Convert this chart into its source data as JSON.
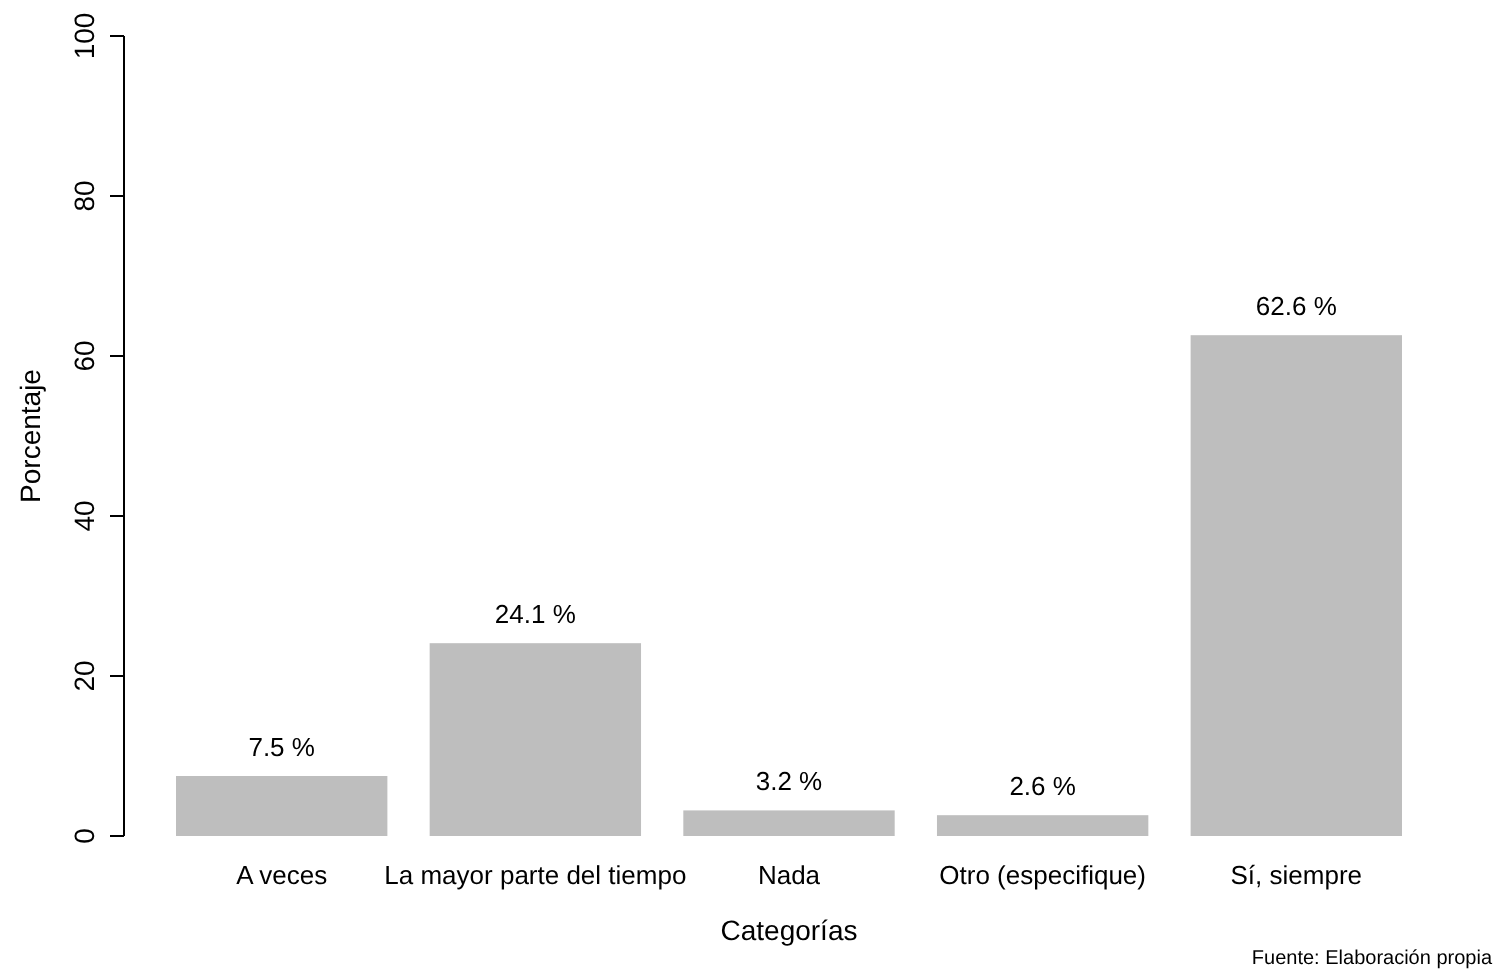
{
  "chart_data": {
    "type": "bar",
    "xlabel": "Categorías",
    "ylabel": "Porcentaje",
    "categories": [
      "A veces",
      "La mayor parte del tiempo",
      "Nada",
      "Otro (especifique)",
      "Sí, siempre"
    ],
    "values": [
      7.5,
      24.1,
      3.2,
      2.6,
      62.6
    ],
    "value_labels": [
      "7.5 %",
      "24.1 %",
      "3.2 %",
      "2.6 %",
      "62.6 %"
    ],
    "color": "#bebebe",
    "ylim": [
      0,
      100
    ],
    "yticks": [
      0,
      20,
      40,
      60,
      80,
      100
    ],
    "grid": false,
    "annotations": [
      "Fuente: Elaboración propia"
    ]
  }
}
